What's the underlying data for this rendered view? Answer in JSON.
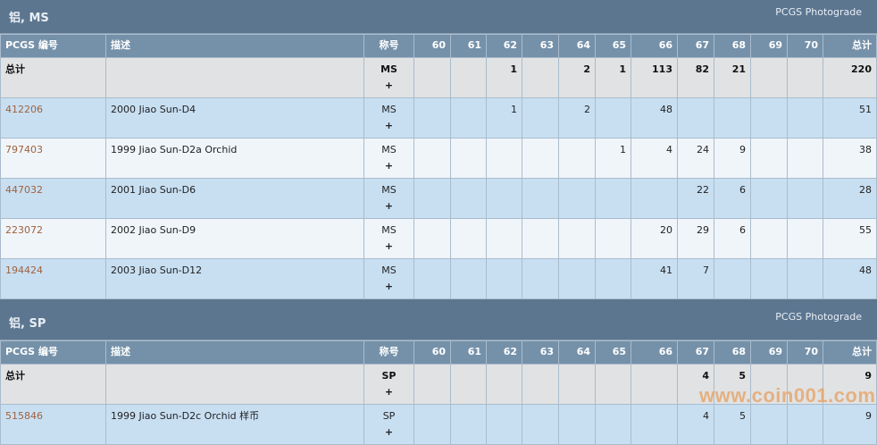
{
  "columns": [
    "PCGS 编号",
    "描述",
    "称号",
    "60",
    "61",
    "62",
    "63",
    "64",
    "65",
    "66",
    "67",
    "68",
    "69",
    "70",
    "总计"
  ],
  "sections": [
    {
      "title": "铝, MS",
      "right_label": "PCGS Photograde",
      "total": {
        "label": "总计",
        "grade": "MS",
        "plus": "+",
        "counts": [
          "",
          "",
          "1",
          "",
          "2",
          "1",
          "113",
          "82",
          "21",
          "",
          ""
        ],
        "sum": "220"
      },
      "rows": [
        {
          "id": "412206",
          "desc": "2000 Jiao Sun-D4",
          "grade": "MS",
          "plus": "+",
          "counts": [
            "",
            "",
            "1",
            "",
            "2",
            "",
            "48",
            "",
            "",
            "",
            ""
          ],
          "sum": "51"
        },
        {
          "id": "797403",
          "desc": "1999 Jiao Sun-D2a Orchid",
          "grade": "MS",
          "plus": "+",
          "counts": [
            "",
            "",
            "",
            "",
            "",
            "1",
            "4",
            "24",
            "9",
            "",
            ""
          ],
          "sum": "38"
        },
        {
          "id": "447032",
          "desc": "2001 Jiao Sun-D6",
          "grade": "MS",
          "plus": "+",
          "counts": [
            "",
            "",
            "",
            "",
            "",
            "",
            "",
            "22",
            "6",
            "",
            ""
          ],
          "sum": "28"
        },
        {
          "id": "223072",
          "desc": "2002 Jiao Sun-D9",
          "grade": "MS",
          "plus": "+",
          "counts": [
            "",
            "",
            "",
            "",
            "",
            "",
            "20",
            "29",
            "6",
            "",
            ""
          ],
          "sum": "55"
        },
        {
          "id": "194424",
          "desc": "2003 Jiao Sun-D12",
          "grade": "MS",
          "plus": "+",
          "counts": [
            "",
            "",
            "",
            "",
            "",
            "",
            "41",
            "7",
            "",
            "",
            ""
          ],
          "sum": "48"
        }
      ]
    },
    {
      "title": "铝, SP",
      "right_label": "PCGS Photograde",
      "total": {
        "label": "总计",
        "grade": "SP",
        "plus": "+",
        "counts": [
          "",
          "",
          "",
          "",
          "",
          "",
          "",
          "4",
          "5",
          "",
          ""
        ],
        "sum": "9"
      },
      "rows": [
        {
          "id": "515846",
          "desc": "1999 Jiao Sun-D2c Orchid 样币",
          "grade": "SP",
          "plus": "+",
          "counts": [
            "",
            "",
            "",
            "",
            "",
            "",
            "",
            "4",
            "5",
            "",
            ""
          ],
          "sum": "9"
        }
      ]
    }
  ],
  "watermark": "www.coin001.com",
  "colors": {
    "header": "#5c7690",
    "column_header": "#7591a9",
    "total_row": "#e1e2e3",
    "row_odd": "#c8dff2",
    "row_even": "#f0f5fa",
    "id_link": "#a0623d"
  }
}
